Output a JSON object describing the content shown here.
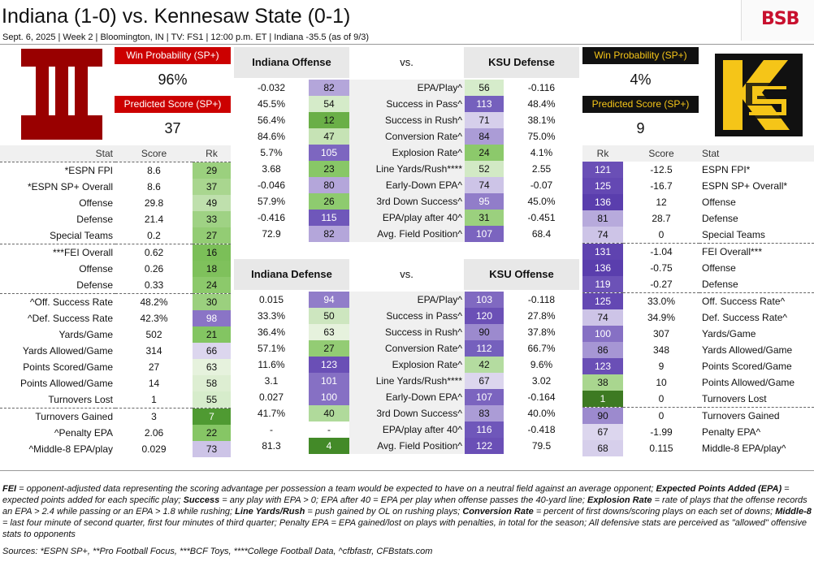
{
  "title": "Indiana (1-0) vs. Kennesaw State (0-1)",
  "subtitle": "Sept. 6, 2025 | Week 2 | Bloomington, IN | TV: FS1 | 12:00 p.m. ET | Indiana -35.5 (as of 9/3)",
  "brand": "BSB",
  "left_card": {
    "wp_label": "Win Probability (SP+)",
    "wp_value": "96%",
    "ps_label": "Predicted Score (SP+)",
    "ps_value": "37"
  },
  "right_card": {
    "wp_label": "Win Probability (SP+)",
    "wp_value": "4%",
    "ps_label": "Predicted Score (SP+)",
    "ps_value": "9"
  },
  "left_headers": {
    "stat": "Stat",
    "score": "Score",
    "rk": "Rk"
  },
  "right_headers": {
    "rk": "Rk",
    "score": "Score",
    "stat": "Stat"
  },
  "left_rows": [
    {
      "stat": "*ESPN FPI",
      "score": "8.6",
      "rk": "29",
      "color": "#9bd07e"
    },
    {
      "stat": "*ESPN SP+ Overall",
      "score": "8.6",
      "rk": "37",
      "color": "#a9d68f"
    },
    {
      "stat": "Offense",
      "score": "29.8",
      "rk": "49",
      "color": "#bfe0ad"
    },
    {
      "stat": "Defense",
      "score": "21.4",
      "rk": "33",
      "color": "#9fd284"
    },
    {
      "stat": "Special Teams",
      "score": "0.2",
      "rk": "27",
      "color": "#93cc74"
    },
    {
      "stat": "***FEI Overall",
      "score": "0.62",
      "rk": "16",
      "color": "#7bbf58"
    },
    {
      "stat": "Offense",
      "score": "0.26",
      "rk": "18",
      "color": "#7fc15c"
    },
    {
      "stat": "Defense",
      "score": "0.33",
      "rk": "24",
      "color": "#8cc96b"
    },
    {
      "stat": "^Off. Success Rate",
      "score": "48.2%",
      "rk": "30",
      "color": "#9bd07e"
    },
    {
      "stat": "^Def. Success Rate",
      "score": "42.3%",
      "rk": "98",
      "color": "#8a74c6"
    },
    {
      "stat": "Yards/Game",
      "score": "502",
      "rk": "21",
      "color": "#83c562"
    },
    {
      "stat": "Yards Allowed/Game",
      "score": "314",
      "rk": "66",
      "color": "#dcd6ee"
    },
    {
      "stat": "Points Scored/Game",
      "score": "27",
      "rk": "63",
      "color": "#e6f2dd"
    },
    {
      "stat": "Points Allowed/Game",
      "score": "14",
      "rk": "58",
      "color": "#ddeed2"
    },
    {
      "stat": "Turnovers Lost",
      "score": "1",
      "rk": "55",
      "color": "#d6eccb"
    },
    {
      "stat": "Turnovers Gained",
      "score": "3",
      "rk": "7",
      "color": "#4f9a32"
    },
    {
      "stat": "^Penalty EPA",
      "score": "2.06",
      "rk": "22",
      "color": "#86c665"
    },
    {
      "stat": "^Middle-8 EPA/play",
      "score": "0.029",
      "rk": "73",
      "color": "#cdc4e7"
    }
  ],
  "right_rows": [
    {
      "stat": "ESPN FPI*",
      "score": "-12.5",
      "rk": "121",
      "color": "#6a4fb6"
    },
    {
      "stat": "ESPN SP+ Overall*",
      "score": "-16.7",
      "rk": "125",
      "color": "#6448b3"
    },
    {
      "stat": "Offense",
      "score": "12",
      "rk": "136",
      "color": "#5a3ead"
    },
    {
      "stat": "Defense",
      "score": "28.7",
      "rk": "81",
      "color": "#b7aadc"
    },
    {
      "stat": "Special Teams",
      "score": "0",
      "rk": "74",
      "color": "#cdc4e7"
    },
    {
      "stat": "FEI Overall***",
      "score": "-1.04",
      "rk": "131",
      "color": "#5f43b0"
    },
    {
      "stat": "Offense",
      "score": "-0.75",
      "rk": "136",
      "color": "#5a3ead"
    },
    {
      "stat": "Defense",
      "score": "-0.27",
      "rk": "119",
      "color": "#6c52b7"
    },
    {
      "stat": "Off. Success Rate^",
      "score": "33.0%",
      "rk": "125",
      "color": "#6448b3"
    },
    {
      "stat": "Def. Success Rate^",
      "score": "34.9%",
      "rk": "74",
      "color": "#cdc4e7"
    },
    {
      "stat": "Yards/Game",
      "score": "307",
      "rk": "100",
      "color": "#8670c4"
    },
    {
      "stat": "Yards Allowed/Game",
      "score": "348",
      "rk": "86",
      "color": "#a696d4"
    },
    {
      "stat": "Points Scored/Game",
      "score": "9",
      "rk": "123",
      "color": "#6a4fb6"
    },
    {
      "stat": "Points Allowed/Game",
      "score": "10",
      "rk": "38",
      "color": "#a9d68f"
    },
    {
      "stat": "Turnovers Lost",
      "score": "0",
      "rk": "1",
      "color": "#3d7a22"
    },
    {
      "stat": "Turnovers Gained",
      "score": "0",
      "rk": "90",
      "color": "#9c8ace"
    },
    {
      "stat": "Penalty EPA^",
      "score": "-1.99",
      "rk": "67",
      "color": "#dcd6ee"
    },
    {
      "stat": "Middle-8 EPA/play^",
      "score": "0.115",
      "rk": "68",
      "color": "#d6cfeb"
    }
  ],
  "top_matchup": {
    "left_title": "Indiana Offense",
    "vs": "vs.",
    "right_title": "KSU Defense",
    "rows": [
      {
        "lv": "-0.032",
        "lr": "82",
        "lc": "#b4a6da",
        "stat": "EPA/Play^",
        "rr": "56",
        "rc": "#d6eccb",
        "rv": "-0.116"
      },
      {
        "lv": "45.5%",
        "lr": "54",
        "lc": "#d5ebc9",
        "stat": "Success in Pass^",
        "rr": "113",
        "rc": "#7560bd",
        "rv": "48.4%"
      },
      {
        "lv": "56.4%",
        "lr": "12",
        "lc": "#6aaf47",
        "stat": "Success in Rush^",
        "rr": "71",
        "rc": "#d6cfeb",
        "rv": "38.1%"
      },
      {
        "lv": "84.6%",
        "lr": "47",
        "lc": "#c6e3b5",
        "stat": "Conversion Rate^",
        "rr": "84",
        "rc": "#ab9cd6",
        "rv": "75.0%"
      },
      {
        "lv": "5.7%",
        "lr": "105",
        "lc": "#7d66c0",
        "stat": "Explosion Rate^",
        "rr": "24",
        "rc": "#8cc96b",
        "rv": "4.1%"
      },
      {
        "lv": "3.68",
        "lr": "23",
        "lc": "#88c767",
        "stat": "Line Yards/Rush****",
        "rr": "52",
        "rc": "#d2e9c5",
        "rv": "2.55"
      },
      {
        "lv": "-0.046",
        "lr": "80",
        "lc": "#b4a6da",
        "stat": "Early-Down EPA^",
        "rr": "74",
        "rc": "#cdc4e7",
        "rv": "-0.07"
      },
      {
        "lv": "57.9%",
        "lr": "26",
        "lc": "#8ecb6f",
        "stat": "3rd Down Success^",
        "rr": "95",
        "rc": "#917dc9",
        "rv": "45.0%"
      },
      {
        "lv": "-0.416",
        "lr": "115",
        "lc": "#6f57ba",
        "stat": "EPA/play after 40^",
        "rr": "31",
        "rc": "#9bd07e",
        "rv": "-0.451"
      },
      {
        "lv": "72.9",
        "lr": "82",
        "lc": "#b4a6da",
        "stat": "Avg. Field Position^",
        "rr": "107",
        "rc": "#7b64bf",
        "rv": "68.4"
      }
    ]
  },
  "bottom_matchup": {
    "left_title": "Indiana Defense",
    "vs": "vs.",
    "right_title": "KSU Offense",
    "rows": [
      {
        "lv": "0.015",
        "lr": "94",
        "lc": "#917dc9",
        "stat": "EPA/Play^",
        "rr": "103",
        "rc": "#8069c1",
        "rv": "-0.118"
      },
      {
        "lv": "33.3%",
        "lr": "50",
        "lc": "#cde6bf",
        "stat": "Success in Pass^",
        "rr": "120",
        "rc": "#6b50b6",
        "rv": "27.8%"
      },
      {
        "lv": "36.4%",
        "lr": "63",
        "lc": "#e6f2dd",
        "stat": "Success in Rush^",
        "rr": "90",
        "rc": "#9c8ace",
        "rv": "37.8%"
      },
      {
        "lv": "57.1%",
        "lr": "27",
        "lc": "#93cc74",
        "stat": "Conversion Rate^",
        "rr": "112",
        "rc": "#7560bd",
        "rv": "66.7%"
      },
      {
        "lv": "11.6%",
        "lr": "123",
        "lc": "#6a4fb6",
        "stat": "Explosion Rate^",
        "rr": "42",
        "rc": "#b4dca0",
        "rv": "9.6%"
      },
      {
        "lv": "3.1",
        "lr": "101",
        "lc": "#8670c4",
        "stat": "Line Yards/Rush****",
        "rr": "67",
        "rc": "#dcd6ee",
        "rv": "3.02"
      },
      {
        "lv": "0.027",
        "lr": "100",
        "lc": "#8670c4",
        "stat": "Early-Down EPA^",
        "rr": "107",
        "rc": "#7b64bf",
        "rv": "-0.164"
      },
      {
        "lv": "41.7%",
        "lr": "40",
        "lc": "#b0da9b",
        "stat": "3rd Down Success^",
        "rr": "83",
        "rc": "#ab9cd6",
        "rv": "40.0%"
      },
      {
        "lv": "-",
        "lr": "-",
        "lc": "#ffffff",
        "stat": "EPA/play after 40^",
        "rr": "116",
        "rc": "#6f57ba",
        "rv": "-0.418"
      },
      {
        "lv": "81.3",
        "lr": "4",
        "lc": "#438a28",
        "stat": "Avg. Field Position^",
        "rr": "122",
        "rc": "#6a4fb6",
        "rv": "79.5"
      }
    ]
  },
  "footnote_parts": [
    {
      "b": "FEI",
      "t": " = opponent-adjusted data representing the scoring advantage per possession a team would be expected to have on a neutral field against an average opponent; "
    },
    {
      "b": "Expected Points Added (EPA)",
      "t": " = expected points added for each specific play; "
    },
    {
      "b": "Success",
      "t": " = any play with EPA > 0; EPA after 40 = EPA per play when offense passes the 40-yard line; "
    },
    {
      "b": "Explosion Rate",
      "t": " = rate of plays that the offense records an EPA > 2.4 while passing or an EPA > 1.8 while rushing; "
    },
    {
      "b": "Line Yards/Rush",
      "t": " = push gained by OL on rushing plays; "
    },
    {
      "b": "Conversion Rate",
      "t": " = percent of first downs/scoring plays on each set of downs; "
    },
    {
      "b": "Middle-8",
      "t": " = last four minute of second quarter, first four minutes of third quarter; Penalty EPA = EPA gained/lost on plays with penalties, in total for the season; All defensive stats are perceived as \"allowed\" offensive stats to opponents"
    }
  ],
  "sources": "Sources:  *ESPN SP+, **Pro Football Focus, ***BCF Toys, ****College Football Data, ^cfbfastr, CFBstats.com"
}
